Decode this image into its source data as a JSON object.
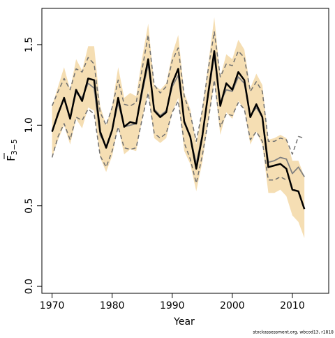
{
  "chart_data": {
    "type": "line",
    "x_label": "Year",
    "y_label": {
      "symbol": "F",
      "subscript": "3−5"
    },
    "footer": "stockassessment.org, wbcod13, r1818",
    "x": [
      1970,
      1971,
      1972,
      1973,
      1974,
      1975,
      1976,
      1977,
      1978,
      1979,
      1980,
      1981,
      1982,
      1983,
      1984,
      1985,
      1986,
      1987,
      1988,
      1989,
      1990,
      1991,
      1992,
      1993,
      1994,
      1995,
      1996,
      1997,
      1998,
      1999,
      2000,
      2001,
      2002,
      2003,
      2004,
      2005,
      2006,
      2007,
      2008,
      2009,
      2010,
      2011,
      2012
    ],
    "band": {
      "color": "#f5deb3",
      "upper": [
        1.12,
        1.24,
        1.36,
        1.22,
        1.41,
        1.34,
        1.49,
        1.49,
        1.12,
        1.0,
        1.12,
        1.36,
        1.17,
        1.2,
        1.18,
        1.42,
        1.63,
        1.25,
        1.22,
        1.26,
        1.44,
        1.56,
        1.2,
        1.1,
        0.88,
        1.1,
        1.38,
        1.67,
        1.3,
        1.44,
        1.41,
        1.53,
        1.47,
        1.23,
        1.32,
        1.25,
        0.91,
        0.92,
        0.94,
        0.92,
        0.78,
        0.78,
        0.68
      ],
      "lower": [
        0.8,
        0.91,
        1.0,
        0.88,
        1.04,
        0.98,
        1.11,
        1.09,
        0.8,
        0.71,
        0.81,
        0.99,
        0.82,
        0.85,
        0.84,
        1.04,
        1.21,
        0.92,
        0.89,
        0.92,
        1.08,
        1.17,
        0.84,
        0.76,
        0.59,
        0.77,
        1.02,
        1.27,
        0.94,
        1.08,
        1.04,
        1.15,
        1.1,
        0.88,
        0.96,
        0.88,
        0.58,
        0.58,
        0.6,
        0.56,
        0.44,
        0.4,
        0.3
      ]
    },
    "series": [
      {
        "color": "#808080",
        "dashed": false,
        "width": 1.8,
        "values": [
          0.96,
          1.08,
          1.16,
          1.05,
          1.2,
          1.17,
          1.26,
          1.23,
          0.94,
          0.87,
          0.97,
          1.14,
          0.99,
          1.0,
          1.01,
          1.2,
          1.38,
          1.1,
          1.06,
          1.09,
          1.24,
          1.31,
          1.03,
          0.93,
          0.76,
          0.94,
          1.19,
          1.43,
          1.14,
          1.22,
          1.21,
          1.3,
          1.26,
          1.06,
          1.11,
          1.05,
          0.77,
          0.78,
          0.8,
          0.79,
          0.7,
          0.74,
          0.68
        ]
      },
      {
        "color": "#707070",
        "dashed": true,
        "width": 1.5,
        "values": [
          1.12,
          1.21,
          1.29,
          1.22,
          1.35,
          1.33,
          1.42,
          1.38,
          1.08,
          1.0,
          1.11,
          1.28,
          1.13,
          1.12,
          1.14,
          1.35,
          1.56,
          1.25,
          1.2,
          1.24,
          1.4,
          1.48,
          1.18,
          1.07,
          0.9,
          1.09,
          1.35,
          1.58,
          1.3,
          1.38,
          1.37,
          1.46,
          1.42,
          1.21,
          1.27,
          1.21,
          0.9,
          0.9,
          0.92,
          0.91,
          0.82,
          0.93,
          0.92
        ]
      },
      {
        "color": "#707070",
        "dashed": true,
        "width": 1.5,
        "values": [
          0.8,
          0.93,
          1.01,
          0.91,
          1.05,
          1.03,
          1.1,
          1.07,
          0.81,
          0.74,
          0.84,
          0.99,
          0.86,
          0.85,
          0.86,
          1.04,
          1.2,
          0.95,
          0.92,
          0.95,
          1.08,
          1.15,
          0.89,
          0.79,
          0.64,
          0.81,
          1.03,
          1.28,
          0.99,
          1.07,
          1.06,
          1.14,
          1.1,
          0.91,
          0.96,
          0.9,
          0.66,
          0.66,
          0.68,
          0.66,
          null,
          null,
          null
        ]
      },
      {
        "color": "#000000",
        "dashed": false,
        "width": 2.5,
        "values": [
          0.96,
          1.07,
          1.17,
          1.04,
          1.22,
          1.15,
          1.29,
          1.28,
          0.96,
          0.86,
          0.97,
          1.17,
          0.99,
          1.02,
          1.01,
          1.22,
          1.41,
          1.09,
          1.05,
          1.08,
          1.26,
          1.35,
          1.02,
          0.93,
          0.73,
          0.93,
          1.2,
          1.46,
          1.12,
          1.26,
          1.22,
          1.33,
          1.28,
          1.05,
          1.13,
          1.05,
          0.74,
          0.75,
          0.76,
          0.73,
          0.6,
          0.59,
          0.48
        ]
      }
    ],
    "xlim": [
      1968.3,
      2016.05
    ],
    "xticks": [
      1970,
      1980,
      1990,
      2000,
      2010
    ],
    "ylim": [
      -0.043,
      1.725
    ],
    "yticks": [
      {
        "value": 0,
        "label": "0.0"
      },
      0.5,
      {
        "value": 1,
        "label": "1.0"
      },
      1.5
    ]
  }
}
